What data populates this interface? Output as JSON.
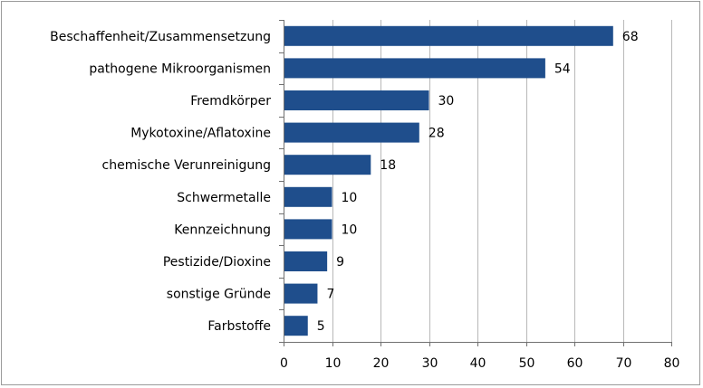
{
  "chart_data": {
    "type": "bar",
    "orientation": "horizontal",
    "categories": [
      "Beschaffenheit/Zusammensetzung",
      "pathogene Mikroorganismen",
      "Fremdkörper",
      "Mykotoxine/Aflatoxine",
      "chemische Verunreinigung",
      "Schwermetalle",
      "Kennzeichnung",
      "Pestizide/Dioxine",
      "sonstige Gründe",
      "Farbstoffe"
    ],
    "values": [
      68,
      54,
      30,
      28,
      18,
      10,
      10,
      9,
      7,
      5
    ],
    "value_labels": [
      "68",
      "54",
      "30",
      "28",
      "18",
      "10",
      "10",
      "9",
      "7",
      "5"
    ],
    "xlim": [
      0,
      80
    ],
    "xticks": [
      0,
      10,
      20,
      30,
      40,
      50,
      60,
      70,
      80
    ],
    "xtick_labels": [
      "0",
      "10",
      "20",
      "30",
      "40",
      "50",
      "60",
      "70",
      "80"
    ],
    "grid": "vertical",
    "legend": "none",
    "title": "",
    "xlabel": "",
    "ylabel": "",
    "colors": {
      "bar": "#1f4e8c",
      "grid": "#b8b8b8",
      "axis": "#707070"
    }
  }
}
